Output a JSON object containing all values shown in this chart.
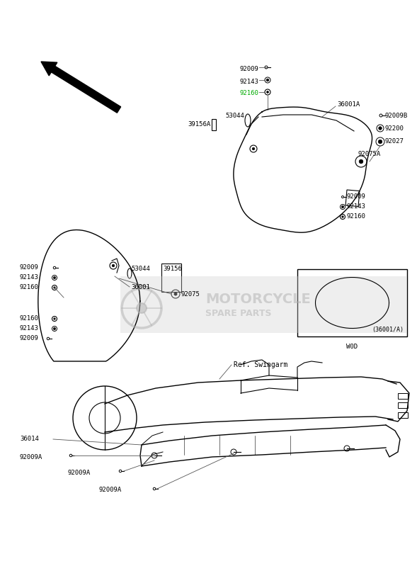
{
  "bg_color": "#ffffff",
  "fig_width": 5.89,
  "fig_height": 7.99,
  "dpi": 100,
  "watermark_text1": "MOTORCYCLE",
  "watermark_text2": "SPARE PARTS",
  "watermark_color": "#b0b0b0",
  "watermark_alpha": 0.5,
  "label_color": "#000000",
  "highlight_color": "#00aa00",
  "line_color": "#000000",
  "label_fontsize": 6.5,
  "box_label": "(36001/A)",
  "box_sub_label": "W0D",
  "ref_label": "Ref. Swingarm"
}
